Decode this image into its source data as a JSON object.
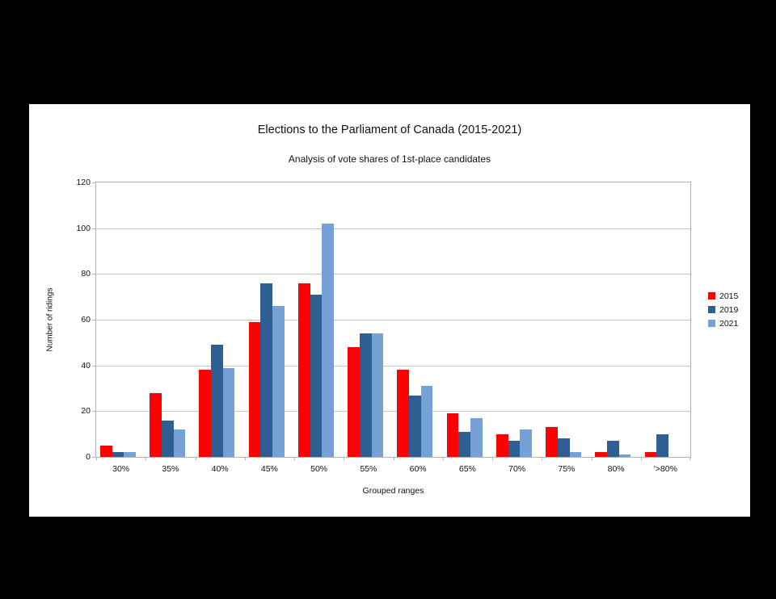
{
  "page": {
    "background_color": "#000000",
    "card_background_color": "#ffffff",
    "axis_line_color": "#b3b3b3",
    "gridline_color": "#c6c6c6"
  },
  "chart_data": {
    "type": "bar",
    "title": "Elections to the Parliament of Canada (2015-2021)",
    "subtitle": "Analysis of vote shares of 1st-place candidates",
    "xlabel": "Grouped ranges",
    "ylabel": "Number of ridings",
    "categories": [
      "30%",
      "35%",
      "40%",
      "45%",
      "50%",
      "55%",
      "60%",
      "65%",
      "70%",
      "75%",
      "80%",
      "'>80%"
    ],
    "series": [
      {
        "name": "2015",
        "color": "#fe0000",
        "values": [
          5,
          28,
          38,
          59,
          76,
          48,
          38,
          19,
          10,
          13,
          2,
          2
        ]
      },
      {
        "name": "2019",
        "color": "#2d5f93",
        "values": [
          2,
          16,
          49,
          76,
          71,
          54,
          27,
          11,
          7,
          8,
          7,
          10
        ]
      },
      {
        "name": "2021",
        "color": "#76a1d4",
        "values": [
          2,
          12,
          39,
          66,
          102,
          54,
          31,
          17,
          12,
          2,
          1,
          0
        ]
      }
    ],
    "ylim": [
      0,
      120
    ],
    "yticks": [
      0,
      20,
      40,
      60,
      80,
      100,
      120
    ],
    "grid": true,
    "legend_position": "right"
  }
}
